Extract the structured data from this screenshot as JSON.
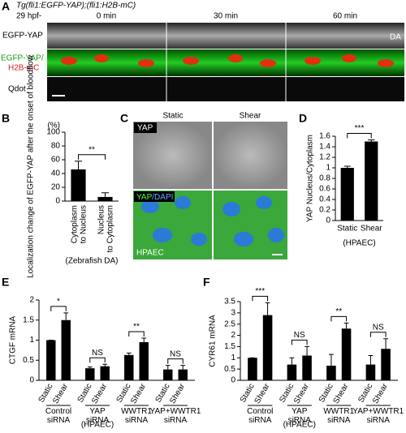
{
  "panels": {
    "a": {
      "letter": "A",
      "genotype": "Tg(fli1:EGFP-YAP);(fli1:H2B-mC)",
      "stage": "29 hpf-",
      "times": [
        "0 min",
        "30 min",
        "60 min"
      ],
      "row1": "EGFP-YAP",
      "row2a": "EGFP-YAP/",
      "row2b": "H2B-mC",
      "row3": "Qdot",
      "vessel": "DA"
    },
    "b": {
      "letter": "B"
    },
    "c": {
      "letter": "C",
      "static": "Static",
      "shear": "Shear",
      "stain1": "YAP",
      "stain2a": "YAP",
      "stain2b": "/DAPI",
      "cell": "HPAEC"
    },
    "d": {
      "letter": "D"
    },
    "e": {
      "letter": "E"
    },
    "f": {
      "letter": "F"
    }
  },
  "chart_data": [
    {
      "type": "bar",
      "ylabel": "Localization change of EGFP-YAP after the onset of blood flow",
      "unit": "(%)",
      "xlabel": "(Zebrafish DA)",
      "categories": [
        "Cytoplasm to Nucleus",
        "Nucleus to Cytoplasm"
      ],
      "values": [
        46,
        6
      ],
      "errors": [
        12,
        6
      ],
      "color": "#000000",
      "significance": [
        "**"
      ],
      "ylim": [
        0,
        100
      ],
      "yticks": [
        0,
        20,
        40,
        60,
        80,
        100
      ]
    },
    {
      "type": "bar",
      "ylabel": "YAP Nucleus/Cytoplasm",
      "xlabel": "(HPAEC)",
      "categories": [
        "Static",
        "Shear"
      ],
      "values": [
        1.0,
        1.5
      ],
      "errors": [
        0.03,
        0.03
      ],
      "color": "#000000",
      "significance": [
        "***"
      ],
      "ylim": [
        0,
        1.6
      ],
      "yticks": [
        0,
        0.2,
        0.4,
        0.6,
        0.8,
        1,
        1.2,
        1.4,
        1.6
      ]
    },
    {
      "type": "bar",
      "ylabel": "CTGF mRNA",
      "xlabel": "(HPAEC)",
      "categories": [
        "Static",
        "Shear",
        "Static",
        "Shear",
        "Static",
        "Shear",
        "Static",
        "Shear"
      ],
      "groups": [
        "Control siRNA",
        "YAP siRNA",
        "WWTR1 siRNA",
        "YAP+WWTR1 siRNA"
      ],
      "values": [
        1.0,
        1.5,
        0.3,
        0.35,
        0.63,
        0.95,
        0.27,
        0.27
      ],
      "errors": [
        0,
        0.18,
        0.03,
        0.05,
        0.05,
        0.1,
        0.1,
        0.1
      ],
      "color": "#000000",
      "significance": [
        "*",
        "NS",
        "**",
        "NS"
      ],
      "ylim": [
        0,
        2
      ],
      "yticks": [
        0,
        0.5,
        1,
        1.5,
        2
      ]
    },
    {
      "type": "bar",
      "ylabel": "CYR61 mRNA",
      "xlabel": "(HPAEC)",
      "categories": [
        "Static",
        "Shear",
        "Static",
        "Shear",
        "Static",
        "Shear",
        "Static",
        "Shear"
      ],
      "groups": [
        "Control siRNA",
        "YAP siRNA",
        "WWTR1 siRNA",
        "YAP+WWTR1 siRNA"
      ],
      "values": [
        1.0,
        2.9,
        0.7,
        1.1,
        0.65,
        2.3,
        0.7,
        1.4
      ],
      "errors": [
        0,
        0.55,
        0.3,
        0.4,
        0.5,
        0.25,
        0.4,
        0.45
      ],
      "color": "#000000",
      "significance": [
        "***",
        "NS",
        "**",
        "NS"
      ],
      "ylim": [
        0,
        3.5
      ],
      "yticks": [
        0,
        0.5,
        1,
        1.5,
        2,
        2.5,
        3,
        3.5
      ]
    }
  ]
}
